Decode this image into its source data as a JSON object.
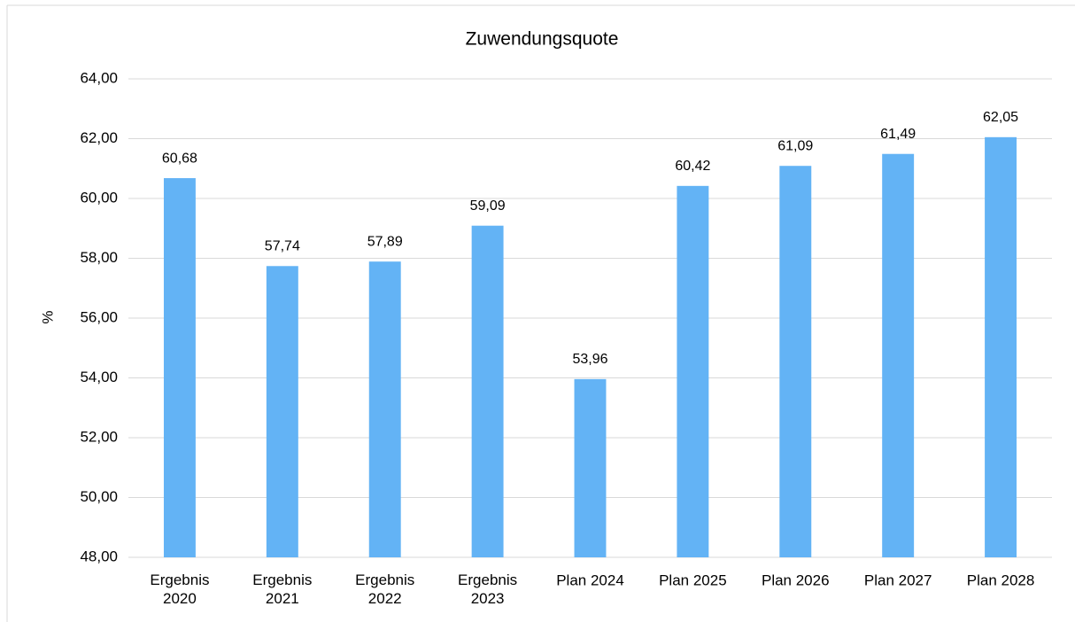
{
  "chart_data": {
    "type": "bar",
    "title": "Zuwendungsquote",
    "y_label": "%",
    "categories": [
      "Ergebnis 2020",
      "Ergebnis 2021",
      "Ergebnis 2022",
      "Ergebnis 2023",
      "Plan 2024",
      "Plan 2025",
      "Plan 2026",
      "Plan 2027",
      "Plan 2028"
    ],
    "values": [
      60.68,
      57.74,
      57.89,
      59.09,
      53.96,
      60.42,
      61.09,
      61.49,
      62.05
    ],
    "value_labels": [
      "60,68",
      "57,74",
      "57,89",
      "59,09",
      "53,96",
      "60,42",
      "61,09",
      "61,49",
      "62,05"
    ],
    "color": "#63b3f5",
    "ylim": [
      48,
      64
    ],
    "yticks": [
      {
        "value": 48,
        "label": "48,00"
      },
      {
        "value": 50,
        "label": "50,00"
      },
      {
        "value": 52,
        "label": "52,00"
      },
      {
        "value": 54,
        "label": "54,00"
      },
      {
        "value": 56,
        "label": "56,00"
      },
      {
        "value": 58,
        "label": "58,00"
      },
      {
        "value": 60,
        "label": "60,00"
      },
      {
        "value": 62,
        "label": "62,00"
      },
      {
        "value": 64,
        "label": "64,00"
      }
    ],
    "grid": true
  }
}
